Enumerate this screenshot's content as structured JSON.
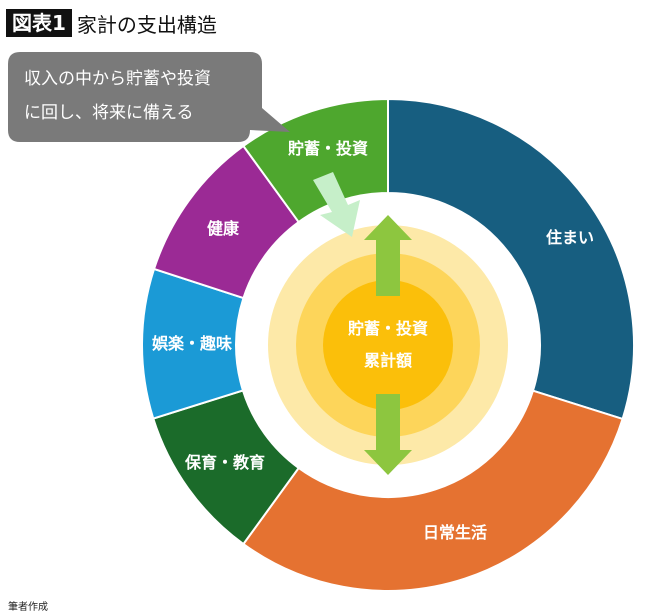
{
  "header": {
    "badge": "図表1",
    "title": "家計の支出構造"
  },
  "callout": {
    "line1": "収入の中から貯蓄や投資",
    "line2": "に回し、将来に備える"
  },
  "segments": [
    {
      "label": "住まい",
      "color": "#175e80"
    },
    {
      "label": "日常生活",
      "color": "#e57231"
    },
    {
      "label": "保育・教育",
      "color": "#1b6b2a"
    },
    {
      "label": "娯楽・趣味",
      "color": "#1b9ad6"
    },
    {
      "label": "健康",
      "color": "#9b2a95"
    },
    {
      "label": "貯蓄・投資",
      "color": "#4ea72e"
    }
  ],
  "center": {
    "line1": "貯蓄・投資",
    "line2": "累計額",
    "colors": [
      "#fde9a8",
      "#fdd55a",
      "#fbbf0a"
    ]
  },
  "arrow_colors": {
    "flow": "#c6efc9",
    "double": "#8dc63f"
  },
  "footer": {
    "source": "筆者作成"
  }
}
